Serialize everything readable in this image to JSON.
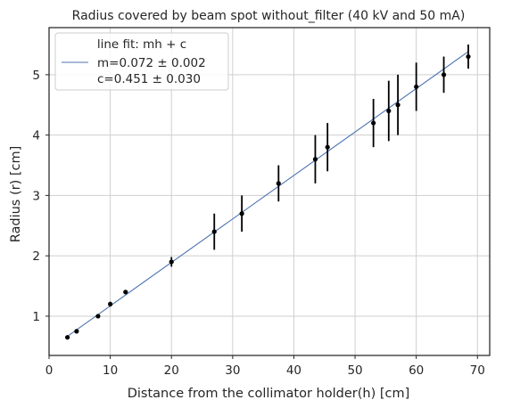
{
  "chart_data": {
    "type": "scatter",
    "title": "Radius covered by beam spot without_filter (40 kV and 50 mA)",
    "xlabel": "Distance from the  collimator holder(h) [cm]",
    "ylabel": "Radius (r) [cm]",
    "xlim": [
      0,
      72
    ],
    "ylim": [
      0.35,
      5.78
    ],
    "xticks": [
      0,
      10,
      20,
      30,
      40,
      50,
      60,
      70
    ],
    "yticks": [
      1,
      2,
      3,
      4,
      5
    ],
    "grid": true,
    "legend_position": "top-left",
    "legend": {
      "title": "line fit: mh + c",
      "line1": " m=0.072 ± 0.002",
      "line2": "c=0.451 ± 0.030"
    },
    "fit": {
      "m": 0.072,
      "c": 0.451,
      "x_range": [
        3,
        68.5
      ],
      "color": "#4c72b0"
    },
    "points": {
      "x": [
        3,
        4.5,
        8,
        10,
        12.5,
        20,
        27,
        31.5,
        37.5,
        43.5,
        45.5,
        53,
        55.5,
        57,
        60,
        64.5,
        68.5
      ],
      "y": [
        0.65,
        0.75,
        1.0,
        1.2,
        1.4,
        1.9,
        2.4,
        2.7,
        3.2,
        3.6,
        3.8,
        4.2,
        4.4,
        4.5,
        4.8,
        5.0,
        5.3
      ],
      "yerr": [
        0.02,
        0.03,
        0.02,
        0.04,
        0.03,
        0.08,
        0.3,
        0.3,
        0.3,
        0.4,
        0.4,
        0.4,
        0.5,
        0.5,
        0.4,
        0.3,
        0.2
      ]
    }
  }
}
